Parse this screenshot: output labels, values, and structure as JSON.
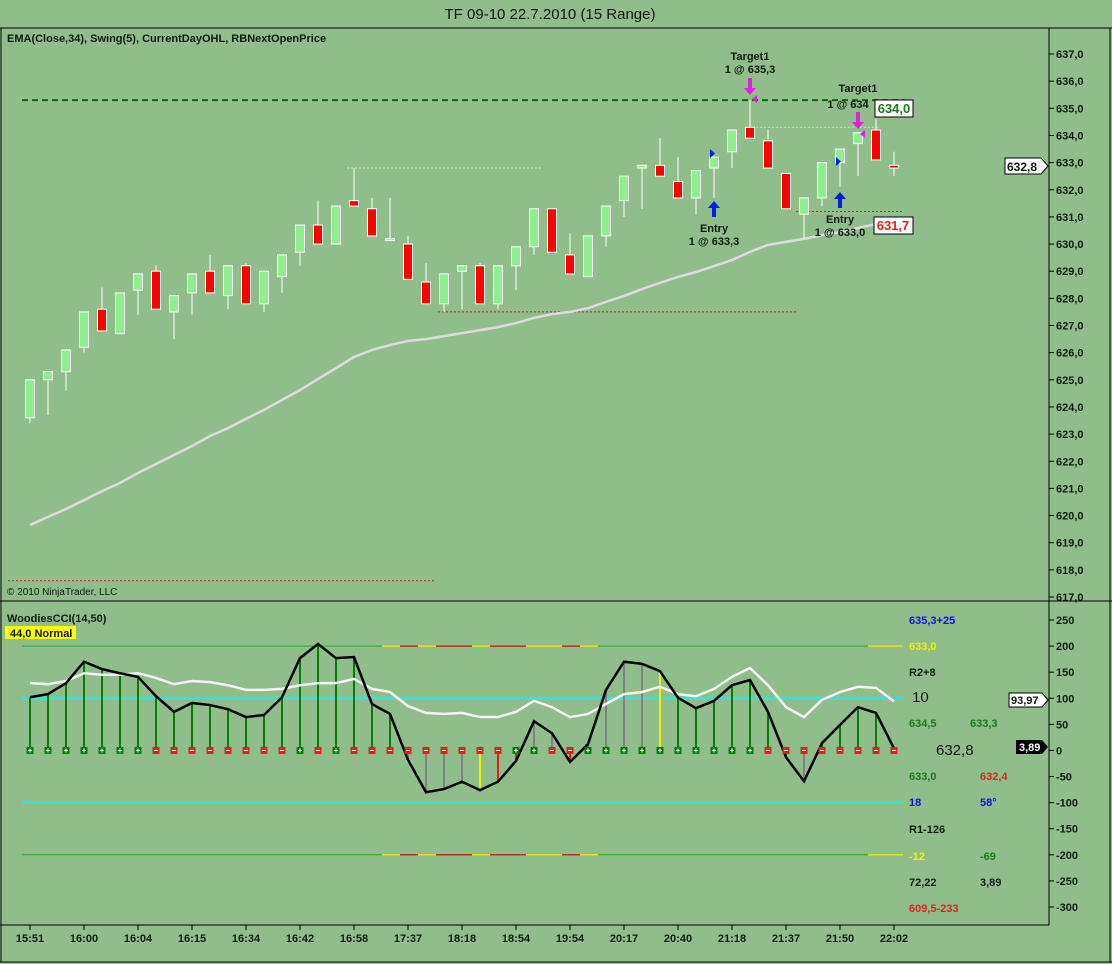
{
  "title": "TF 09-10  22.7.2010 (15 Range)",
  "price_panel": {
    "indicators_label": "EMA(Close,34), Swing(5), CurrentDayOHL, RBNextOpenPrice",
    "copyright": "© 2010 NinjaTrader, LLC",
    "last_price_label": "632,8",
    "next_open_high_label": "634,0",
    "next_open_low_label": "631,7",
    "annotations": {
      "target1_a": {
        "title": "Target1",
        "detail": "1 @ 635,3"
      },
      "target1_b": {
        "title": "Target1",
        "detail": "1 @ 634"
      },
      "entry_a": {
        "title": "Entry",
        "detail": "1 @ 633,3"
      },
      "entry_b": {
        "title": "Entry",
        "detail": "1 @ 633,0"
      }
    }
  },
  "cci_panel": {
    "label": "WoodiesCCI(14,50)",
    "badge": "44,0 Normal",
    "cci_last_label": "3,89",
    "turbo_last_label": "93,97",
    "info": {
      "r0": "635,3+25",
      "r1": "633,0",
      "r2": "R2+8",
      "r3": "10",
      "r4a": "634,5",
      "r4b": "633,3",
      "r5": "632,8",
      "r6a": "633,0",
      "r6b": "632,4",
      "r7a": "18",
      "r7b": "58°",
      "r8": "R1-126",
      "r9a": "-12",
      "r9b": "-69",
      "r10a": "72,22",
      "r10b": "3,89",
      "r11": "609,5-233"
    }
  },
  "colors": {
    "background": "#8fbe8b",
    "up_body": "#90ee90",
    "down_body": "#ff0000",
    "ema": "#dcdcdc",
    "cyan": "#40e0d0",
    "target_dashed": "#0a6a0a",
    "marker_magenta": "#e020e0",
    "marker_blue": "#0020e0"
  },
  "chart_data": [
    {
      "type": "candlestick",
      "title": "TF 09-10  22.7.2010 (15 Range)",
      "ylim": [
        617,
        637
      ],
      "yticks": [
        "637,0",
        "636,0",
        "635,0",
        "634,0",
        "633,0",
        "632,0",
        "631,0",
        "630,0",
        "629,0",
        "628,0",
        "627,0",
        "626,0",
        "625,0",
        "624,0",
        "623,0",
        "622,0",
        "621,0",
        "620,0",
        "619,0",
        "618,0",
        "617,0"
      ],
      "x_tick_labels": [
        "15:51",
        "16:00",
        "16:04",
        "16:15",
        "16:34",
        "16:42",
        "16:58",
        "17:37",
        "18:18",
        "18:54",
        "19:54",
        "20:17",
        "20:40",
        "21:18",
        "21:37",
        "21:50",
        "22:02"
      ],
      "ohlc": [
        [
          623.6,
          625.0,
          623.4,
          625.0
        ],
        [
          625.0,
          625.3,
          623.7,
          625.3
        ],
        [
          625.3,
          626.1,
          624.6,
          626.1
        ],
        [
          626.2,
          627.5,
          626.0,
          627.5
        ],
        [
          627.6,
          628.4,
          626.8,
          626.8
        ],
        [
          626.7,
          628.2,
          626.7,
          628.2
        ],
        [
          628.3,
          628.9,
          627.4,
          628.9
        ],
        [
          629.0,
          629.2,
          627.6,
          627.6
        ],
        [
          627.5,
          628.1,
          626.5,
          628.1
        ],
        [
          628.2,
          628.9,
          627.4,
          628.9
        ],
        [
          629.0,
          629.6,
          628.2,
          628.2
        ],
        [
          628.1,
          629.2,
          627.6,
          629.2
        ],
        [
          629.2,
          629.3,
          627.8,
          627.8
        ],
        [
          627.8,
          629.0,
          627.5,
          629.0
        ],
        [
          628.8,
          629.6,
          628.2,
          629.6
        ],
        [
          629.7,
          630.7,
          629.2,
          630.7
        ],
        [
          630.7,
          631.6,
          630.0,
          630.0
        ],
        [
          630.0,
          631.4,
          630.0,
          631.4
        ],
        [
          631.6,
          632.8,
          631.4,
          631.4
        ],
        [
          631.3,
          631.7,
          630.3,
          630.3
        ],
        [
          630.2,
          631.7,
          630.2,
          630.2
        ],
        [
          630.0,
          630.3,
          628.7,
          628.7
        ],
        [
          628.6,
          629.3,
          627.8,
          627.8
        ],
        [
          627.8,
          628.9,
          627.5,
          628.9
        ],
        [
          629.0,
          629.2,
          627.6,
          629.2
        ],
        [
          629.2,
          629.3,
          627.8,
          627.8
        ],
        [
          627.8,
          629.2,
          627.6,
          629.2
        ],
        [
          629.2,
          629.9,
          628.3,
          629.9
        ],
        [
          629.9,
          631.3,
          629.6,
          631.3
        ],
        [
          631.3,
          631.3,
          629.7,
          629.7
        ],
        [
          629.6,
          630.4,
          628.9,
          628.9
        ],
        [
          628.8,
          630.3,
          628.8,
          630.3
        ],
        [
          630.3,
          631.4,
          629.9,
          631.4
        ],
        [
          631.6,
          632.5,
          631.0,
          632.5
        ],
        [
          632.8,
          632.9,
          631.3,
          632.9
        ],
        [
          632.9,
          633.9,
          632.5,
          632.5
        ],
        [
          632.3,
          633.2,
          631.7,
          631.7
        ],
        [
          631.7,
          632.7,
          631.1,
          632.7
        ],
        [
          632.8,
          633.2,
          631.7,
          633.2
        ],
        [
          633.4,
          634.2,
          632.8,
          634.2
        ],
        [
          634.3,
          635.3,
          633.9,
          633.9
        ],
        [
          633.8,
          634.2,
          632.8,
          632.8
        ],
        [
          632.6,
          632.6,
          631.3,
          631.3
        ],
        [
          631.1,
          631.7,
          630.2,
          631.7
        ],
        [
          631.7,
          633.0,
          631.4,
          633.0
        ],
        [
          633.0,
          633.5,
          632.1,
          633.5
        ],
        [
          633.7,
          634.1,
          632.5,
          634.1
        ],
        [
          634.2,
          634.6,
          633.1,
          633.1
        ],
        [
          632.9,
          633.4,
          632.5,
          632.8
        ]
      ],
      "ema34": [
        619.65,
        619.95,
        620.24,
        620.57,
        620.9,
        621.2,
        621.57,
        621.9,
        622.23,
        622.56,
        622.93,
        623.22,
        623.56,
        623.89,
        624.26,
        624.62,
        625.03,
        625.43,
        625.84,
        626.1,
        626.28,
        626.43,
        626.5,
        626.61,
        626.72,
        626.83,
        626.94,
        627.09,
        627.28,
        627.42,
        627.5,
        627.64,
        627.87,
        628.09,
        628.34,
        628.57,
        628.79,
        628.97,
        629.19,
        629.41,
        629.71,
        629.97,
        630.08,
        630.19,
        630.33,
        630.44,
        630.59,
        630.74,
        630.89
      ],
      "levels": {
        "target_dashed": 635.3,
        "swing_high_a": 632.8,
        "swing_high_b": 634.3,
        "swing_low_a": 627.5,
        "swing_low_b": 631.2,
        "day_low": 617.6
      },
      "markers": {
        "target_a_bar": 40,
        "target_b_bar": 46,
        "entry_a_bar": 38,
        "entry_b_bar": 45
      }
    },
    {
      "type": "line+histogram",
      "title": "WoodiesCCI(14,50)",
      "ylim": [
        -300,
        250
      ],
      "yticks": [
        "250",
        "200",
        "150",
        "100",
        "50",
        "0",
        "-50",
        "-100",
        "-150",
        "-200",
        "-250",
        "-300"
      ],
      "reference_lines": [
        200,
        100,
        -100,
        -200
      ],
      "cci": [
        102,
        108,
        129,
        170,
        156,
        148,
        141,
        104,
        74,
        91,
        87,
        79,
        64,
        68,
        102,
        177,
        204,
        177,
        179,
        89,
        70,
        -18,
        -80,
        -74,
        -60,
        -76,
        -60,
        -20,
        56,
        33,
        -22,
        12,
        116,
        170,
        166,
        152,
        101,
        81,
        95,
        125,
        135,
        74,
        -13,
        -59,
        14,
        49,
        83,
        72,
        3.89
      ],
      "turbo_cci": [
        129,
        127,
        133,
        148,
        145,
        145,
        148,
        139,
        127,
        133,
        131,
        125,
        116,
        116,
        118,
        125,
        129,
        129,
        137,
        118,
        112,
        85,
        72,
        70,
        72,
        64,
        64,
        74,
        95,
        83,
        64,
        70,
        89,
        108,
        112,
        122,
        108,
        104,
        118,
        141,
        158,
        125,
        83,
        64,
        97,
        112,
        122,
        120,
        93.97
      ],
      "histogram_colors": [
        "g",
        "g",
        "g",
        "g",
        "g",
        "g",
        "g",
        "g",
        "g",
        "g",
        "g",
        "g",
        "g",
        "g",
        "g",
        "g",
        "g",
        "g",
        "g",
        "g",
        "g",
        "x",
        "x",
        "x",
        "x",
        "y",
        "r",
        "r",
        "x",
        "x",
        "r",
        "x",
        "x",
        "x",
        "x",
        "y",
        "g",
        "g",
        "g",
        "g",
        "g",
        "g",
        "g",
        "x",
        "g",
        "g",
        "g",
        "g",
        "g"
      ],
      "zero_signs": [
        "+",
        "+",
        "+",
        "+",
        "+",
        "+",
        "+",
        "-",
        "-",
        "-",
        "-",
        "-",
        "-",
        "-",
        "-",
        "+",
        "-",
        "+",
        "-",
        "-",
        "-",
        "-",
        "-",
        "-",
        "-",
        "-",
        "-",
        "+",
        "+",
        "-",
        "-",
        "+",
        "+",
        "+",
        "+",
        "+",
        "+",
        "+",
        "+",
        "+",
        "+",
        "-",
        "-",
        "-",
        "-",
        "-",
        "-",
        "-",
        "-"
      ]
    }
  ]
}
